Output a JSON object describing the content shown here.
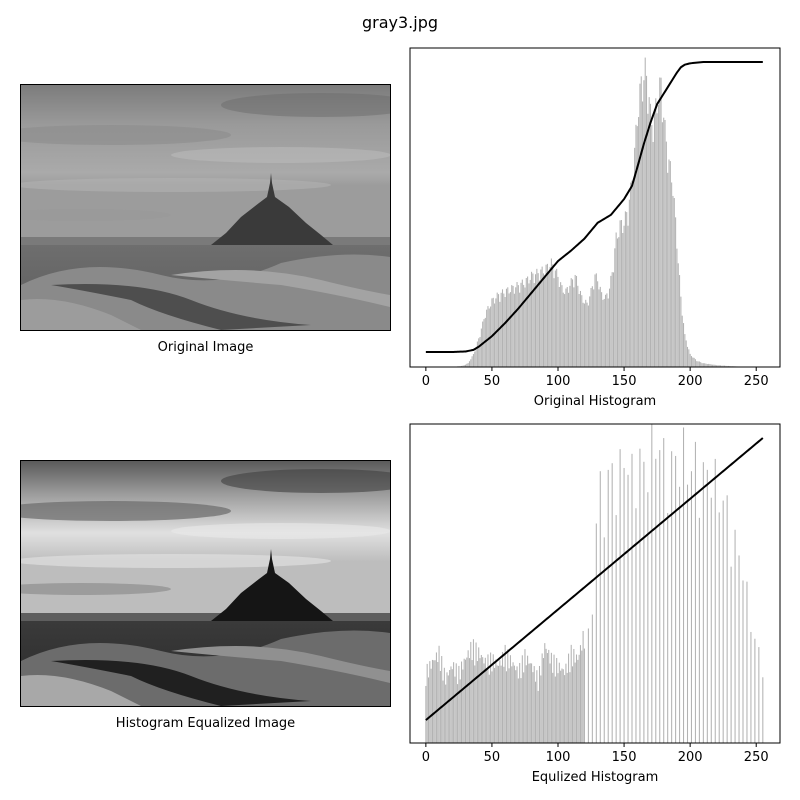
{
  "figure": {
    "title": "gray3.jpg"
  },
  "images": [
    {
      "label": "Original Image",
      "tone": "original"
    },
    {
      "label": "Histogram Equalized Image",
      "tone": "equalized"
    }
  ],
  "chart_data": [
    {
      "type": "bar",
      "title": "",
      "xlabel": "Original Histogram",
      "ylabel": "",
      "xlim": [
        -12,
        268
      ],
      "xticks": [
        0,
        50,
        100,
        150,
        200,
        250
      ],
      "yticks_visible": false,
      "bar_color": "#b3b3b3",
      "cdf_color": "#000000",
      "histogram_keypoints": [
        [
          0,
          0
        ],
        [
          20,
          0
        ],
        [
          28,
          0.4
        ],
        [
          32,
          1.2
        ],
        [
          36,
          4
        ],
        [
          40,
          9
        ],
        [
          45,
          17
        ],
        [
          50,
          21
        ],
        [
          55,
          23
        ],
        [
          60,
          24
        ],
        [
          65,
          25
        ],
        [
          70,
          26
        ],
        [
          75,
          27
        ],
        [
          80,
          29
        ],
        [
          85,
          30
        ],
        [
          90,
          31
        ],
        [
          95,
          33
        ],
        [
          100,
          29
        ],
        [
          103,
          25
        ],
        [
          106,
          24
        ],
        [
          110,
          27
        ],
        [
          113,
          29
        ],
        [
          116,
          25
        ],
        [
          118,
          22
        ],
        [
          120,
          21
        ],
        [
          122,
          20
        ],
        [
          125,
          24
        ],
        [
          128,
          29
        ],
        [
          130,
          28
        ],
        [
          133,
          23
        ],
        [
          136,
          22
        ],
        [
          139,
          25
        ],
        [
          142,
          33
        ],
        [
          144,
          41
        ],
        [
          147,
          45
        ],
        [
          150,
          46
        ],
        [
          153,
          50
        ],
        [
          155,
          56
        ],
        [
          158,
          68
        ],
        [
          160,
          80
        ],
        [
          163,
          90
        ],
        [
          166,
          94
        ],
        [
          168,
          90
        ],
        [
          170,
          80
        ],
        [
          172,
          77
        ],
        [
          175,
          85
        ],
        [
          178,
          90
        ],
        [
          181,
          75
        ],
        [
          184,
          65
        ],
        [
          187,
          58
        ],
        [
          190,
          40
        ],
        [
          193,
          22
        ],
        [
          196,
          10
        ],
        [
          200,
          4
        ],
        [
          205,
          2
        ],
        [
          210,
          1.2
        ],
        [
          220,
          0.6
        ],
        [
          230,
          0.3
        ],
        [
          240,
          0.1
        ],
        [
          255,
          0
        ]
      ],
      "cdf_keypoints": [
        [
          0,
          0
        ],
        [
          20,
          0
        ],
        [
          30,
          0.002
        ],
        [
          36,
          0.008
        ],
        [
          40,
          0.02
        ],
        [
          50,
          0.06
        ],
        [
          60,
          0.11
        ],
        [
          70,
          0.165
        ],
        [
          80,
          0.225
        ],
        [
          90,
          0.285
        ],
        [
          100,
          0.345
        ],
        [
          110,
          0.385
        ],
        [
          120,
          0.43
        ],
        [
          125,
          0.46
        ],
        [
          130,
          0.49
        ],
        [
          140,
          0.52
        ],
        [
          150,
          0.58
        ],
        [
          156,
          0.63
        ],
        [
          160,
          0.7
        ],
        [
          165,
          0.79
        ],
        [
          170,
          0.87
        ],
        [
          175,
          0.94
        ],
        [
          180,
          0.98
        ],
        [
          185,
          1.02
        ],
        [
          190,
          1.06
        ],
        [
          193,
          1.08
        ],
        [
          196,
          1.09
        ],
        [
          200,
          1.095
        ],
        [
          210,
          1.1
        ],
        [
          255,
          1.1
        ]
      ]
    },
    {
      "type": "bar",
      "title": "",
      "xlabel": "Equlized Histogram",
      "ylabel": "",
      "xlim": [
        -12,
        268
      ],
      "xticks": [
        0,
        50,
        100,
        150,
        200,
        250
      ],
      "yticks_visible": false,
      "bar_color": "#b3b3b3",
      "cdf_color": "#000000",
      "bar_spacing": "sparse toward high intensities (every 2nd-3rd bin above ~120)",
      "histogram_keypoints": [
        [
          0,
          22
        ],
        [
          5,
          25
        ],
        [
          10,
          28
        ],
        [
          15,
          20
        ],
        [
          20,
          24
        ],
        [
          25,
          22
        ],
        [
          30,
          26
        ],
        [
          35,
          30
        ],
        [
          40,
          28
        ],
        [
          45,
          25
        ],
        [
          50,
          26
        ],
        [
          55,
          24
        ],
        [
          60,
          28
        ],
        [
          65,
          25
        ],
        [
          70,
          22
        ],
        [
          75,
          27
        ],
        [
          80,
          24
        ],
        [
          85,
          20
        ],
        [
          90,
          30
        ],
        [
          95,
          26
        ],
        [
          100,
          24
        ],
        [
          105,
          22
        ],
        [
          110,
          28
        ],
        [
          115,
          26
        ],
        [
          120,
          34
        ],
        [
          125,
          32
        ],
        [
          130,
          80
        ],
        [
          135,
          75
        ],
        [
          140,
          85
        ],
        [
          145,
          80
        ],
        [
          150,
          90
        ],
        [
          155,
          82
        ],
        [
          160,
          88
        ],
        [
          165,
          85
        ],
        [
          170,
          90
        ],
        [
          175,
          95
        ],
        [
          180,
          88
        ],
        [
          185,
          85
        ],
        [
          190,
          88
        ],
        [
          195,
          90
        ],
        [
          200,
          84
        ],
        [
          205,
          88
        ],
        [
          210,
          82
        ],
        [
          215,
          85
        ],
        [
          220,
          80
        ],
        [
          225,
          75
        ],
        [
          230,
          70
        ],
        [
          235,
          60
        ],
        [
          240,
          55
        ],
        [
          245,
          40
        ],
        [
          250,
          30
        ],
        [
          255,
          25
        ]
      ],
      "cdf_keypoints": [
        [
          0,
          0.03
        ],
        [
          255,
          1.1
        ]
      ]
    }
  ]
}
